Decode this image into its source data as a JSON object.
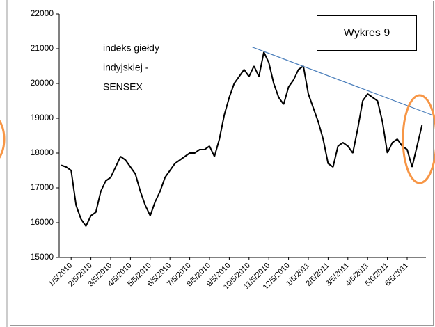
{
  "chart_data": {
    "type": "line",
    "annotation": [
      "indeks giełdy",
      "indyjskiej -",
      "SENSEX"
    ],
    "label_box": "Wykres 9",
    "categories": [
      null,
      null,
      "1/5/2010",
      null,
      null,
      null,
      "2/5/2010",
      null,
      null,
      null,
      "3/5/2010",
      null,
      null,
      null,
      "4/5/2010",
      null,
      null,
      null,
      "5/5/2010",
      null,
      null,
      null,
      "6/5/2010",
      null,
      null,
      null,
      "7/5/2010",
      null,
      null,
      null,
      "8/5/2010",
      null,
      null,
      null,
      "9/5/2010",
      null,
      null,
      null,
      "10/5/2010",
      null,
      null,
      null,
      "11/5/2010",
      null,
      null,
      null,
      "12/5/2010",
      null,
      null,
      null,
      "1/5/2011",
      null,
      null,
      null,
      "2/5/2011",
      null,
      null,
      null,
      "3/5/2011",
      null,
      null,
      null,
      "4/5/2011",
      null,
      null,
      null,
      "5/5/2011",
      null,
      null,
      null,
      "6/5/2011",
      null,
      null,
      null
    ],
    "series": [
      {
        "color": "#000000",
        "values": [
          17650,
          17600,
          17500,
          16500,
          16100,
          15900,
          16200,
          16300,
          16900,
          17200,
          17300,
          17600,
          17900,
          17800,
          17600,
          17400,
          16900,
          16500,
          16200,
          16600,
          16900,
          17300,
          17500,
          17700,
          17800,
          17900,
          18000,
          18000,
          18100,
          18100,
          18200,
          17900,
          18400,
          19100,
          19600,
          20000,
          20200,
          20400,
          20200,
          20500,
          20200,
          20900,
          20600,
          20000,
          19600,
          19400,
          19900,
          20100,
          20400,
          20500,
          19700,
          19300,
          18900,
          18400,
          17700,
          17600,
          18200,
          18300,
          18200,
          18000,
          18700,
          19500,
          19700,
          19600,
          19500,
          18900,
          18000,
          18300,
          18400,
          18200,
          18100,
          17600,
          18200,
          18800
        ]
      }
    ],
    "trendline": {
      "color": "#4a7ebb",
      "start": 21050,
      "end": 19100
    },
    "ylim": [
      15000,
      22000
    ],
    "yticks": [
      15000,
      16000,
      17000,
      18000,
      19000,
      20000,
      21000,
      22000
    ]
  }
}
